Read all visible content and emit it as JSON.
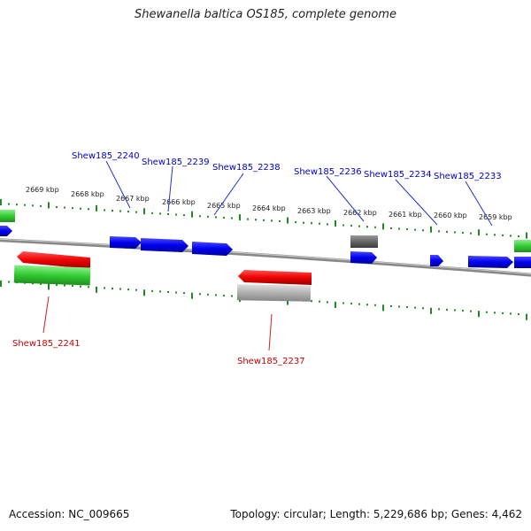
{
  "title": "Shewanella baltica OS185, complete genome",
  "footer": {
    "accession": "Accession: NC_009665",
    "summary": "Topology: circular; Length: 5,229,686 bp; Genes: 4,462"
  },
  "colors": {
    "forward_gene": "#0000ee",
    "reverse_gene": "#ee0000",
    "rna_gene": "#33cc33",
    "other_gene": "#888888",
    "dark_gene": "#555555",
    "tick": "#228822",
    "backbone": "#777777",
    "label_forward": "#0000cc",
    "label_reverse": "#cc0000"
  },
  "scale_ticks": [
    "2669 kbp",
    "2668 kbp",
    "2667 kbp",
    "2666 kbp",
    "2665 kbp",
    "2664 kbp",
    "2663 kbp",
    "2662 kbp",
    "2661 kbp",
    "2660 kbp",
    "2659 kbp"
  ],
  "gene_labels_top": [
    "Shew185_2240",
    "Shew185_2239",
    "Shew185_2238",
    "Shew185_2236",
    "Shew185_2234",
    "Shew185_2233"
  ],
  "gene_labels_bottom": [
    "Shew185_2241",
    "Shew185_2237"
  ]
}
